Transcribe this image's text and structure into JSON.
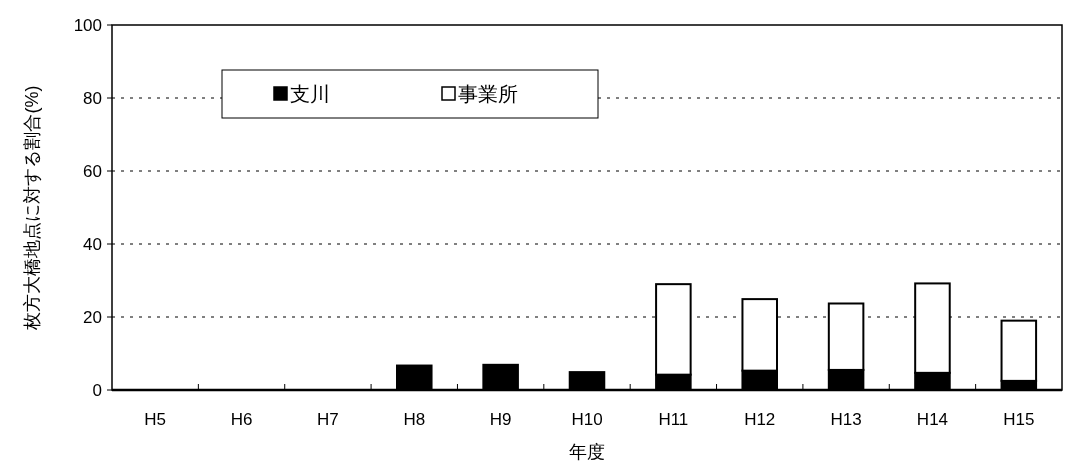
{
  "chart_data": {
    "type": "bar",
    "stacked": true,
    "xlabel": "年度",
    "ylabel": "枚方大橋地点に対する割合(%)",
    "categories": [
      "H5",
      "H6",
      "H7",
      "H8",
      "H9",
      "H10",
      "H11",
      "H12",
      "H13",
      "H14",
      "H15"
    ],
    "series": [
      {
        "name": "支川",
        "color": "#000000",
        "values": [
          0,
          0,
          0,
          6.7,
          6.9,
          4.9,
          4.2,
          5.3,
          5.5,
          4.7,
          2.5
        ]
      },
      {
        "name": "事業所",
        "color": "#ffffff",
        "values": [
          0,
          0,
          0,
          0,
          0,
          0,
          24.8,
          19.6,
          18.2,
          24.5,
          16.5
        ]
      }
    ],
    "ylim": [
      0,
      100
    ],
    "yticks": [
      0,
      20,
      40,
      60,
      80,
      100
    ],
    "grid": "y",
    "legend": "top left"
  }
}
